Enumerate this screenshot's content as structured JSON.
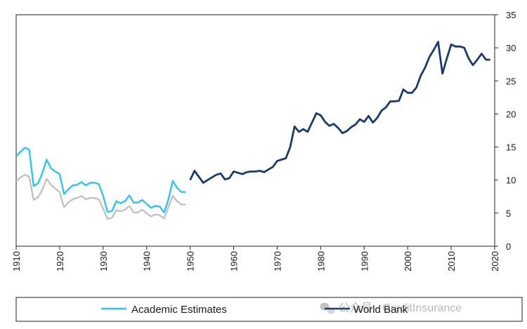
{
  "chart_data": {
    "type": "line",
    "title": "",
    "xlabel": "",
    "ylabel": "",
    "xlim": [
      1910,
      2020
    ],
    "ylim": [
      0,
      35
    ],
    "y_axis_side": "right",
    "grid": false,
    "legend": "bottom",
    "x_ticks": [
      "1910",
      "1920",
      "1930",
      "1940",
      "1950",
      "1960",
      "1970",
      "1980",
      "1990",
      "2000",
      "2010",
      "2020"
    ],
    "y_ticks": [
      "0",
      "5",
      "10",
      "15",
      "20",
      "25",
      "30",
      "35"
    ],
    "series": [
      {
        "name": "Academic Estimates",
        "color": "#2ec4f0",
        "x": [
          1910,
          1911,
          1912,
          1913,
          1914,
          1915,
          1916,
          1917,
          1918,
          1919,
          1920,
          1921,
          1922,
          1923,
          1924,
          1925,
          1926,
          1927,
          1928,
          1929,
          1930,
          1931,
          1932,
          1933,
          1934,
          1935,
          1936,
          1937,
          1938,
          1939,
          1940,
          1941,
          1942,
          1943,
          1944,
          1945,
          1946,
          1947,
          1948,
          1949
        ],
        "values": [
          13.6,
          14.3,
          14.9,
          14.6,
          9.1,
          9.5,
          11.0,
          13.1,
          11.8,
          11.3,
          10.9,
          7.9,
          8.6,
          9.2,
          9.3,
          9.7,
          9.2,
          9.6,
          9.6,
          9.4,
          7.6,
          5.2,
          5.3,
          6.8,
          6.5,
          6.8,
          7.7,
          6.6,
          6.6,
          7.0,
          6.4,
          5.8,
          6.1,
          6.0,
          5.1,
          7.1,
          9.9,
          8.8,
          8.2,
          8.2
        ]
      },
      {
        "name": "",
        "color": "#c2c2c2",
        "x": [
          1910,
          1911,
          1912,
          1913,
          1914,
          1915,
          1916,
          1917,
          1918,
          1919,
          1920,
          1921,
          1922,
          1923,
          1924,
          1925,
          1926,
          1927,
          1928,
          1929,
          1930,
          1931,
          1932,
          1933,
          1934,
          1935,
          1936,
          1937,
          1938,
          1939,
          1940,
          1941,
          1942,
          1943,
          1944,
          1945,
          1946,
          1947,
          1948,
          1949
        ],
        "values": [
          9.8,
          10.4,
          10.8,
          10.5,
          7.0,
          7.4,
          8.5,
          10.2,
          9.3,
          8.7,
          8.2,
          5.9,
          6.6,
          7.1,
          7.3,
          7.6,
          7.1,
          7.3,
          7.3,
          7.1,
          5.7,
          4.1,
          4.3,
          5.4,
          5.3,
          5.5,
          6.1,
          5.1,
          5.1,
          5.5,
          5.0,
          4.5,
          4.8,
          4.7,
          4.2,
          5.9,
          7.6,
          6.8,
          6.3,
          6.3
        ]
      },
      {
        "name": "World Bank",
        "color": "#1a3b6d",
        "x": [
          1950,
          1951,
          1952,
          1953,
          1954,
          1955,
          1956,
          1957,
          1958,
          1959,
          1960,
          1961,
          1962,
          1963,
          1964,
          1965,
          1966,
          1967,
          1968,
          1969,
          1970,
          1971,
          1972,
          1973,
          1974,
          1975,
          1976,
          1977,
          1978,
          1979,
          1980,
          1981,
          1982,
          1983,
          1984,
          1985,
          1986,
          1987,
          1988,
          1989,
          1990,
          1991,
          1992,
          1993,
          1994,
          1995,
          1996,
          1997,
          1998,
          1999,
          2000,
          2001,
          2002,
          2003,
          2004,
          2005,
          2006,
          2007,
          2008,
          2009,
          2010,
          2011,
          2012,
          2013,
          2014,
          2015,
          2016,
          2017,
          2018,
          2019
        ],
        "values": [
          10.0,
          11.4,
          10.5,
          9.6,
          10.0,
          10.4,
          10.8,
          11.0,
          10.1,
          10.3,
          11.3,
          11.1,
          10.9,
          11.2,
          11.3,
          11.3,
          11.4,
          11.2,
          11.6,
          12.0,
          12.9,
          13.1,
          13.3,
          15.0,
          18.1,
          17.3,
          17.7,
          17.3,
          18.7,
          20.1,
          19.8,
          18.8,
          18.2,
          18.5,
          17.9,
          17.1,
          17.4,
          18.0,
          18.4,
          19.2,
          18.8,
          19.7,
          18.7,
          19.4,
          20.5,
          21.0,
          21.9,
          21.9,
          22.0,
          23.7,
          23.2,
          23.2,
          24.0,
          25.8,
          27.0,
          28.6,
          29.7,
          30.9,
          26.1,
          28.4,
          30.5,
          30.2,
          30.2,
          30.0,
          28.4,
          27.4,
          28.2,
          29.1,
          28.2,
          28.2
        ]
      }
    ]
  },
  "watermark": "公众号 · CreditInsurance"
}
